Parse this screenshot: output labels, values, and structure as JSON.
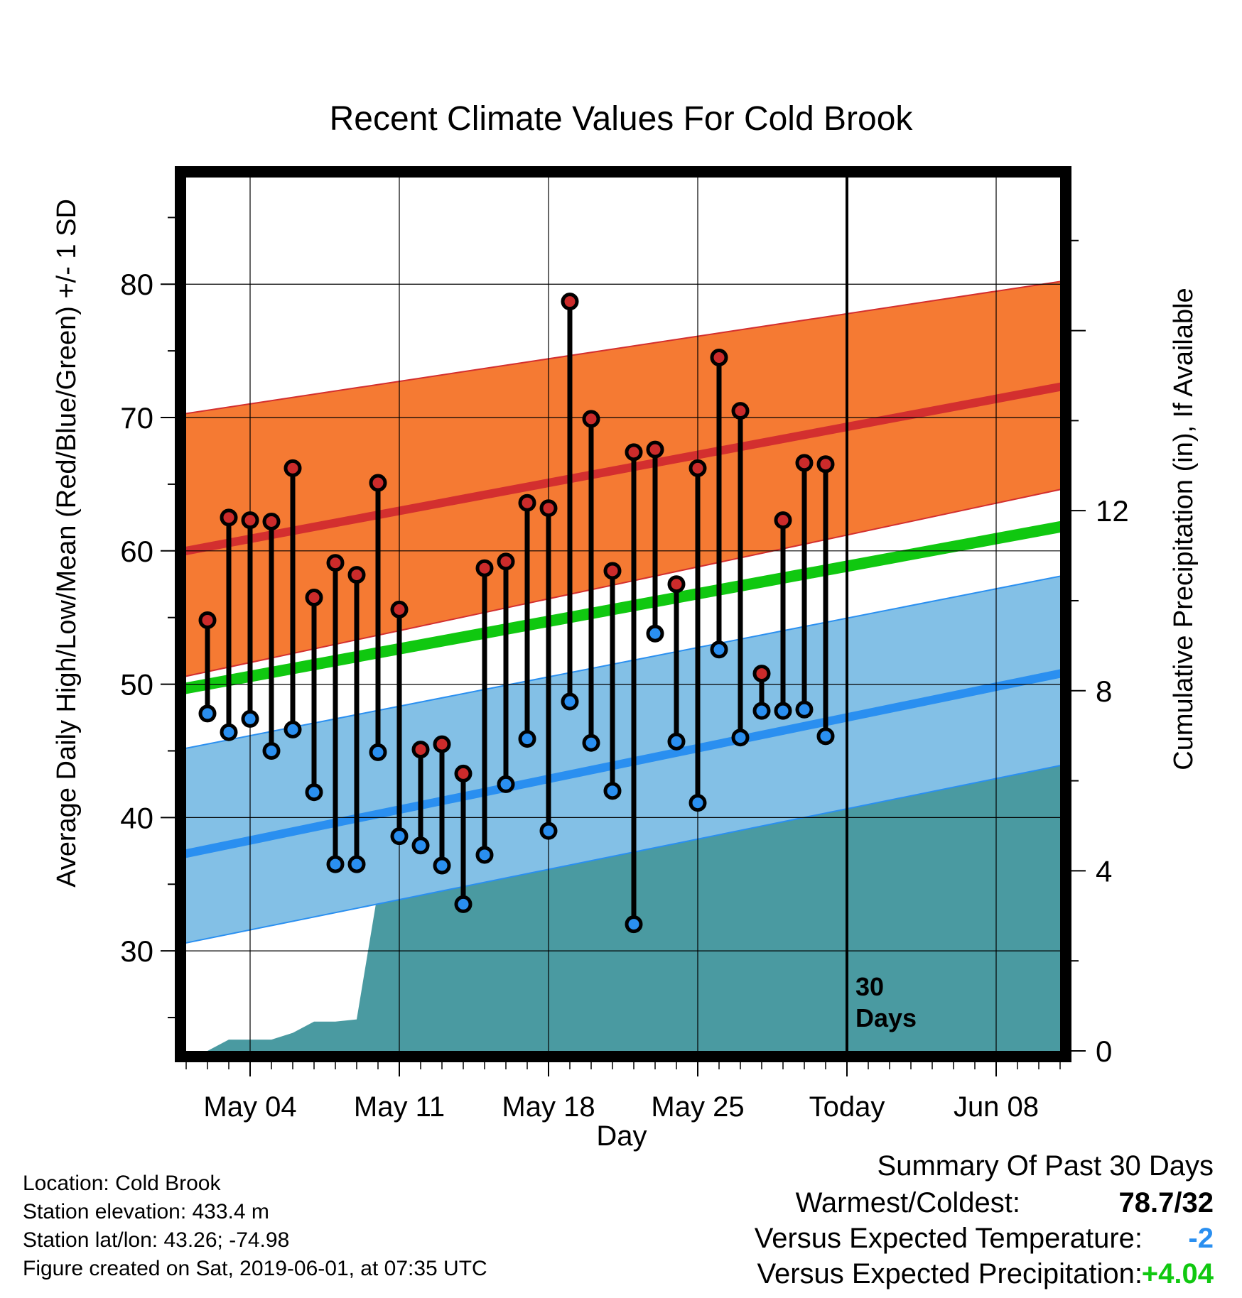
{
  "chart_data": {
    "type": "line",
    "title": "Recent Climate Values For Cold Brook",
    "xlabel": "Day",
    "ylabel": "Average Daily High/Low/Mean (Red/Blue/Green) +/- 1 SD",
    "y2label": "Cumulative Precipitation (in), If Available",
    "ylim": [
      22.5,
      88
    ],
    "y2lim": [
      0,
      19.4
    ],
    "yticks": [
      "30",
      "40",
      "50",
      "60",
      "70",
      "80"
    ],
    "y2ticks": [
      "0",
      "4",
      "8",
      "12"
    ],
    "xlim": [
      "2019-05-01",
      "2019-06-11"
    ],
    "xticks": [
      {
        "date": "2019-05-04",
        "label": "May 04"
      },
      {
        "date": "2019-05-11",
        "label": "May 11"
      },
      {
        "date": "2019-05-18",
        "label": "May 18"
      },
      {
        "date": "2019-05-25",
        "label": "May 25"
      },
      {
        "date": "2019-06-01",
        "label": "Today"
      },
      {
        "date": "2019-06-08",
        "label": "Jun 08"
      }
    ],
    "today": "2019-06-01",
    "today_label": [
      "30",
      "Days"
    ],
    "grid": true,
    "colors": {
      "high_band": "#f57a33",
      "high_line": "#d32f2f",
      "low_band": "#83c0e6",
      "low_line": "#2a8ff0",
      "mean_line": "#10c810",
      "precip": "#4a9aa1",
      "high_dot": "#cc2b2b",
      "low_dot": "#2a8ff0"
    },
    "normals": {
      "dates": [
        "2019-05-01",
        "2019-06-11"
      ],
      "high_mean": [
        60,
        72.3
      ],
      "high_upper": [
        70.3,
        80.2
      ],
      "high_lower": [
        50.6,
        64.6
      ],
      "low_mean": [
        37.3,
        50.8
      ],
      "low_upper": [
        45.2,
        58.1
      ],
      "low_lower": [
        30.6,
        43.9
      ],
      "mean": [
        49.7,
        61.8
      ]
    },
    "series": [
      {
        "name": "High",
        "dates": [
          "2019-05-02",
          "2019-05-03",
          "2019-05-04",
          "2019-05-05",
          "2019-05-06",
          "2019-05-07",
          "2019-05-08",
          "2019-05-09",
          "2019-05-10",
          "2019-05-11",
          "2019-05-12",
          "2019-05-13",
          "2019-05-14",
          "2019-05-15",
          "2019-05-16",
          "2019-05-17",
          "2019-05-18",
          "2019-05-19",
          "2019-05-20",
          "2019-05-21",
          "2019-05-22",
          "2019-05-23",
          "2019-05-24",
          "2019-05-25",
          "2019-05-26",
          "2019-05-27",
          "2019-05-28",
          "2019-05-29",
          "2019-05-30",
          "2019-05-31"
        ],
        "values": [
          54.8,
          62.5,
          62.3,
          62.2,
          66.2,
          56.5,
          59.1,
          58.2,
          65.1,
          55.6,
          45.1,
          45.5,
          43.3,
          58.7,
          59.2,
          63.6,
          63.2,
          78.7,
          69.9,
          58.5,
          67.4,
          67.6,
          57.5,
          66.2,
          74.5,
          70.5,
          50.8,
          62.3,
          66.6,
          66.5
        ]
      },
      {
        "name": "Low",
        "dates": [
          "2019-05-02",
          "2019-05-03",
          "2019-05-04",
          "2019-05-05",
          "2019-05-06",
          "2019-05-07",
          "2019-05-08",
          "2019-05-09",
          "2019-05-10",
          "2019-05-11",
          "2019-05-12",
          "2019-05-13",
          "2019-05-14",
          "2019-05-15",
          "2019-05-16",
          "2019-05-17",
          "2019-05-18",
          "2019-05-19",
          "2019-05-20",
          "2019-05-21",
          "2019-05-22",
          "2019-05-23",
          "2019-05-24",
          "2019-05-25",
          "2019-05-26",
          "2019-05-27",
          "2019-05-28",
          "2019-05-29",
          "2019-05-30",
          "2019-05-31"
        ],
        "values": [
          47.8,
          46.4,
          47.4,
          45.0,
          46.6,
          41.9,
          36.5,
          36.5,
          44.9,
          38.6,
          37.9,
          36.4,
          33.5,
          37.2,
          42.5,
          45.9,
          39.0,
          48.7,
          45.6,
          42.0,
          32.0,
          53.8,
          45.7,
          41.1,
          52.6,
          46.0,
          48.0,
          48.0,
          48.1,
          46.1
        ]
      }
    ],
    "precipitation": {
      "dates": [
        "2019-05-01",
        "2019-05-02",
        "2019-05-03",
        "2019-05-04",
        "2019-05-05",
        "2019-05-06",
        "2019-05-07",
        "2019-05-08",
        "2019-05-09",
        "2019-05-10",
        "2019-05-11",
        "2019-05-12",
        "2019-05-13",
        "2019-05-14",
        "2019-05-15",
        "2019-05-16",
        "2019-05-17",
        "2019-05-18",
        "2019-05-19",
        "2019-05-20",
        "2019-05-21",
        "2019-05-22",
        "2019-05-23",
        "2019-05-24",
        "2019-05-25",
        "2019-05-26",
        "2019-05-27",
        "2019-05-28",
        "2019-05-29",
        "2019-05-30",
        "2019-05-31",
        "2019-06-01",
        "2019-06-11"
      ],
      "values": [
        0.0,
        0.0,
        0.25,
        0.25,
        0.25,
        0.4,
        0.65,
        0.65,
        0.7,
        3.55,
        3.55,
        3.85,
        4.6,
        5.0,
        5.0,
        5.0,
        5.1,
        5.15,
        6.3,
        6.5,
        6.5,
        6.5,
        6.7,
        6.75,
        7.05,
        7.2,
        7.25,
        7.75,
        7.8,
        7.8,
        7.8,
        7.8,
        7.8
      ]
    }
  },
  "info": {
    "location": "Location: Cold Brook",
    "elevation": "Station elevation: 433.4 m",
    "latlon": "Station lat/lon: 43.26; -74.98",
    "created": "Figure created on Sat, 2019-06-01, at 07:35 UTC"
  },
  "summary": {
    "heading": "Summary Of Past 30 Days",
    "warm_cold_label": "Warmest/Coldest:",
    "warm_cold_value": "78.7/32",
    "temp_label": "Versus Expected Temperature:",
    "temp_value": "-2",
    "temp_color": "#2a8ff0",
    "precip_label": "Versus Expected Precipitation:",
    "precip_value": "+4.04",
    "precip_color": "#10c810"
  }
}
